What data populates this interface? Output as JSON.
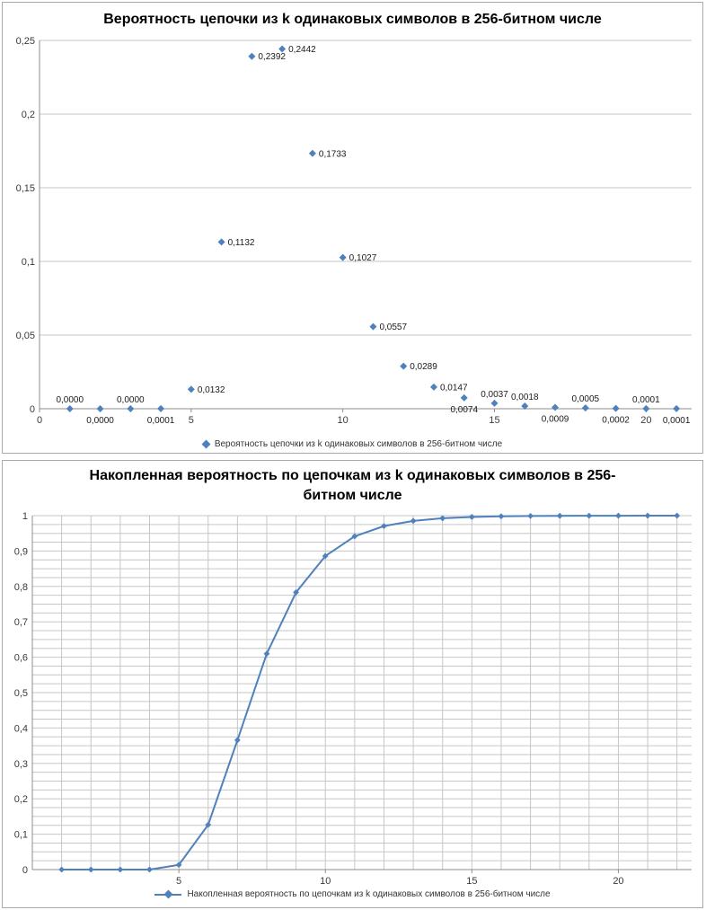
{
  "chart_data": [
    {
      "id": "prob",
      "type": "scatter",
      "title": "Вероятность цепочки из k одинаковых символов в 256-битном числе",
      "legend_label": "Вероятность цепочки из k одинаковых символов в 256-битном числе",
      "color": "#4F81BD",
      "grid_color": "#c6c6c6",
      "xlim": [
        0,
        21.5
      ],
      "ylim": [
        0,
        0.25
      ],
      "grid": {
        "y_step": 0.05,
        "x_step": 0
      },
      "legend_position": "bottom",
      "y_ticks": [
        {
          "v": 0,
          "label": "0"
        },
        {
          "v": 0.05,
          "label": "0,05"
        },
        {
          "v": 0.1,
          "label": "0,1"
        },
        {
          "v": 0.15,
          "label": "0,15"
        },
        {
          "v": 0.2,
          "label": "0,2"
        },
        {
          "v": 0.25,
          "label": "0,25"
        }
      ],
      "x_ticks": [
        {
          "v": 0,
          "label": "0"
        },
        {
          "v": 5,
          "label": "5"
        },
        {
          "v": 10,
          "label": "10"
        },
        {
          "v": 15,
          "label": "15"
        },
        {
          "v": 20,
          "label": "20"
        }
      ],
      "points": [
        {
          "x": 1,
          "y": 0.0,
          "label": "0,0000",
          "pos": "above"
        },
        {
          "x": 2,
          "y": 0.0,
          "label": "0,0000",
          "pos": "below"
        },
        {
          "x": 3,
          "y": 0.0,
          "label": "0,0000",
          "pos": "above"
        },
        {
          "x": 4,
          "y": 0.0001,
          "label": "0,0001",
          "pos": "below"
        },
        {
          "x": 5,
          "y": 0.0132,
          "label": "0,0132",
          "pos": "right"
        },
        {
          "x": 6,
          "y": 0.1132,
          "label": "0,1132",
          "pos": "right"
        },
        {
          "x": 7,
          "y": 0.2392,
          "label": "0,2392",
          "pos": "right"
        },
        {
          "x": 8,
          "y": 0.2442,
          "label": "0,2442",
          "pos": "right"
        },
        {
          "x": 9,
          "y": 0.1733,
          "label": "0,1733",
          "pos": "right"
        },
        {
          "x": 10,
          "y": 0.1027,
          "label": "0,1027",
          "pos": "right"
        },
        {
          "x": 11,
          "y": 0.0557,
          "label": "0,0557",
          "pos": "right"
        },
        {
          "x": 12,
          "y": 0.0289,
          "label": "0,0289",
          "pos": "right"
        },
        {
          "x": 13,
          "y": 0.0147,
          "label": "0,0147",
          "pos": "right"
        },
        {
          "x": 14,
          "y": 0.0074,
          "label": "0,0074",
          "pos": "below"
        },
        {
          "x": 15,
          "y": 0.0037,
          "label": "0,0037",
          "pos": "above"
        },
        {
          "x": 16,
          "y": 0.0018,
          "label": "0,0018",
          "pos": "above"
        },
        {
          "x": 17,
          "y": 0.0009,
          "label": "0,0009",
          "pos": "below"
        },
        {
          "x": 18,
          "y": 0.0005,
          "label": "0,0005",
          "pos": "above"
        },
        {
          "x": 19,
          "y": 0.0002,
          "label": "0,0002",
          "pos": "below"
        },
        {
          "x": 20,
          "y": 0.0001,
          "label": "0,0001",
          "pos": "above"
        },
        {
          "x": 21,
          "y": 0.0001,
          "label": "0,0001",
          "pos": "below"
        }
      ]
    },
    {
      "id": "cum",
      "type": "line",
      "title": "Накопленная вероятность по цепочкам из k одинаковых символов в 256-битном числе",
      "legend_label": "Накопленная вероятность по цепочкам из k одинаковых символов в 256-битном числе",
      "color": "#4F81BD",
      "grid_color": "#c6c6c6",
      "xlim": [
        0,
        22.5
      ],
      "ylim": [
        0,
        1
      ],
      "grid": {
        "y_step": 0.025,
        "x_step": 1
      },
      "legend_position": "bottom",
      "y_ticks": [
        {
          "v": 0,
          "label": "0"
        },
        {
          "v": 0.1,
          "label": "0,1"
        },
        {
          "v": 0.2,
          "label": "0,2"
        },
        {
          "v": 0.3,
          "label": "0,3"
        },
        {
          "v": 0.4,
          "label": "0,4"
        },
        {
          "v": 0.5,
          "label": "0,5"
        },
        {
          "v": 0.6,
          "label": "0,6"
        },
        {
          "v": 0.7,
          "label": "0,7"
        },
        {
          "v": 0.8,
          "label": "0,8"
        },
        {
          "v": 0.9,
          "label": "0,9"
        },
        {
          "v": 1,
          "label": "1"
        }
      ],
      "x_ticks": [
        {
          "v": 5,
          "label": "5"
        },
        {
          "v": 10,
          "label": "10"
        },
        {
          "v": 15,
          "label": "15"
        },
        {
          "v": 20,
          "label": "20"
        }
      ],
      "points": [
        {
          "x": 1,
          "y": 0.0
        },
        {
          "x": 2,
          "y": 0.0
        },
        {
          "x": 3,
          "y": 0.0
        },
        {
          "x": 4,
          "y": 0.0001
        },
        {
          "x": 5,
          "y": 0.0133
        },
        {
          "x": 6,
          "y": 0.1265
        },
        {
          "x": 7,
          "y": 0.3657
        },
        {
          "x": 8,
          "y": 0.6099
        },
        {
          "x": 9,
          "y": 0.7832
        },
        {
          "x": 10,
          "y": 0.8859
        },
        {
          "x": 11,
          "y": 0.9416
        },
        {
          "x": 12,
          "y": 0.9705
        },
        {
          "x": 13,
          "y": 0.9852
        },
        {
          "x": 14,
          "y": 0.9926
        },
        {
          "x": 15,
          "y": 0.9963
        },
        {
          "x": 16,
          "y": 0.9981
        },
        {
          "x": 17,
          "y": 0.999
        },
        {
          "x": 18,
          "y": 0.9995
        },
        {
          "x": 19,
          "y": 0.9997
        },
        {
          "x": 20,
          "y": 0.9998
        },
        {
          "x": 21,
          "y": 0.9999
        },
        {
          "x": 22,
          "y": 1.0
        }
      ]
    }
  ]
}
